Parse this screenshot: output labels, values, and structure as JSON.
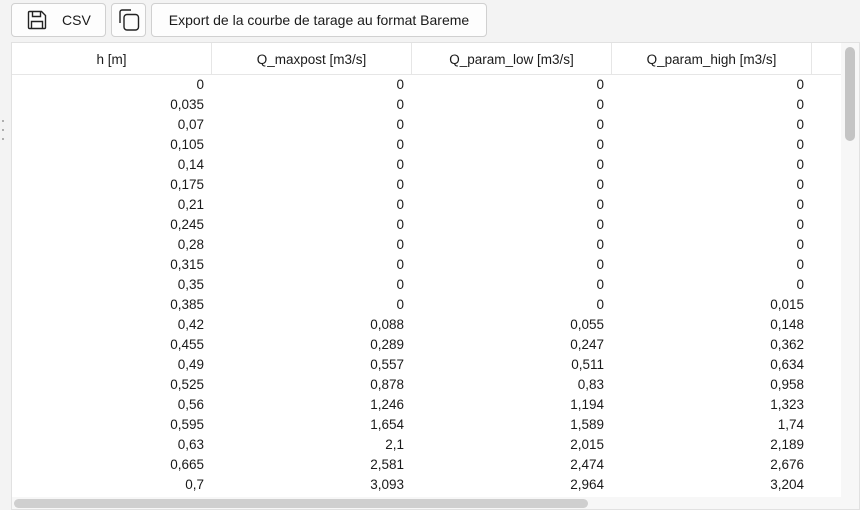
{
  "toolbar": {
    "csv_label": "CSV",
    "export_label": "Export de la courbe de tarage au format Bareme"
  },
  "table": {
    "columns": [
      "h [m]",
      "Q_maxpost [m3/s]",
      "Q_param_low [m3/s]",
      "Q_param_high [m3/s]"
    ],
    "rows": [
      [
        "0",
        "0",
        "0",
        "0"
      ],
      [
        "0,035",
        "0",
        "0",
        "0"
      ],
      [
        "0,07",
        "0",
        "0",
        "0"
      ],
      [
        "0,105",
        "0",
        "0",
        "0"
      ],
      [
        "0,14",
        "0",
        "0",
        "0"
      ],
      [
        "0,175",
        "0",
        "0",
        "0"
      ],
      [
        "0,21",
        "0",
        "0",
        "0"
      ],
      [
        "0,245",
        "0",
        "0",
        "0"
      ],
      [
        "0,28",
        "0",
        "0",
        "0"
      ],
      [
        "0,315",
        "0",
        "0",
        "0"
      ],
      [
        "0,35",
        "0",
        "0",
        "0"
      ],
      [
        "0,385",
        "0",
        "0",
        "0,015"
      ],
      [
        "0,42",
        "0,088",
        "0,055",
        "0,148"
      ],
      [
        "0,455",
        "0,289",
        "0,247",
        "0,362"
      ],
      [
        "0,49",
        "0,557",
        "0,511",
        "0,634"
      ],
      [
        "0,525",
        "0,878",
        "0,83",
        "0,958"
      ],
      [
        "0,56",
        "1,246",
        "1,194",
        "1,323"
      ],
      [
        "0,595",
        "1,654",
        "1,589",
        "1,74"
      ],
      [
        "0,63",
        "2,1",
        "2,015",
        "2,189"
      ],
      [
        "0,665",
        "2,581",
        "2,474",
        "2,676"
      ],
      [
        "0,7",
        "3,093",
        "2,964",
        "3,204"
      ]
    ]
  }
}
